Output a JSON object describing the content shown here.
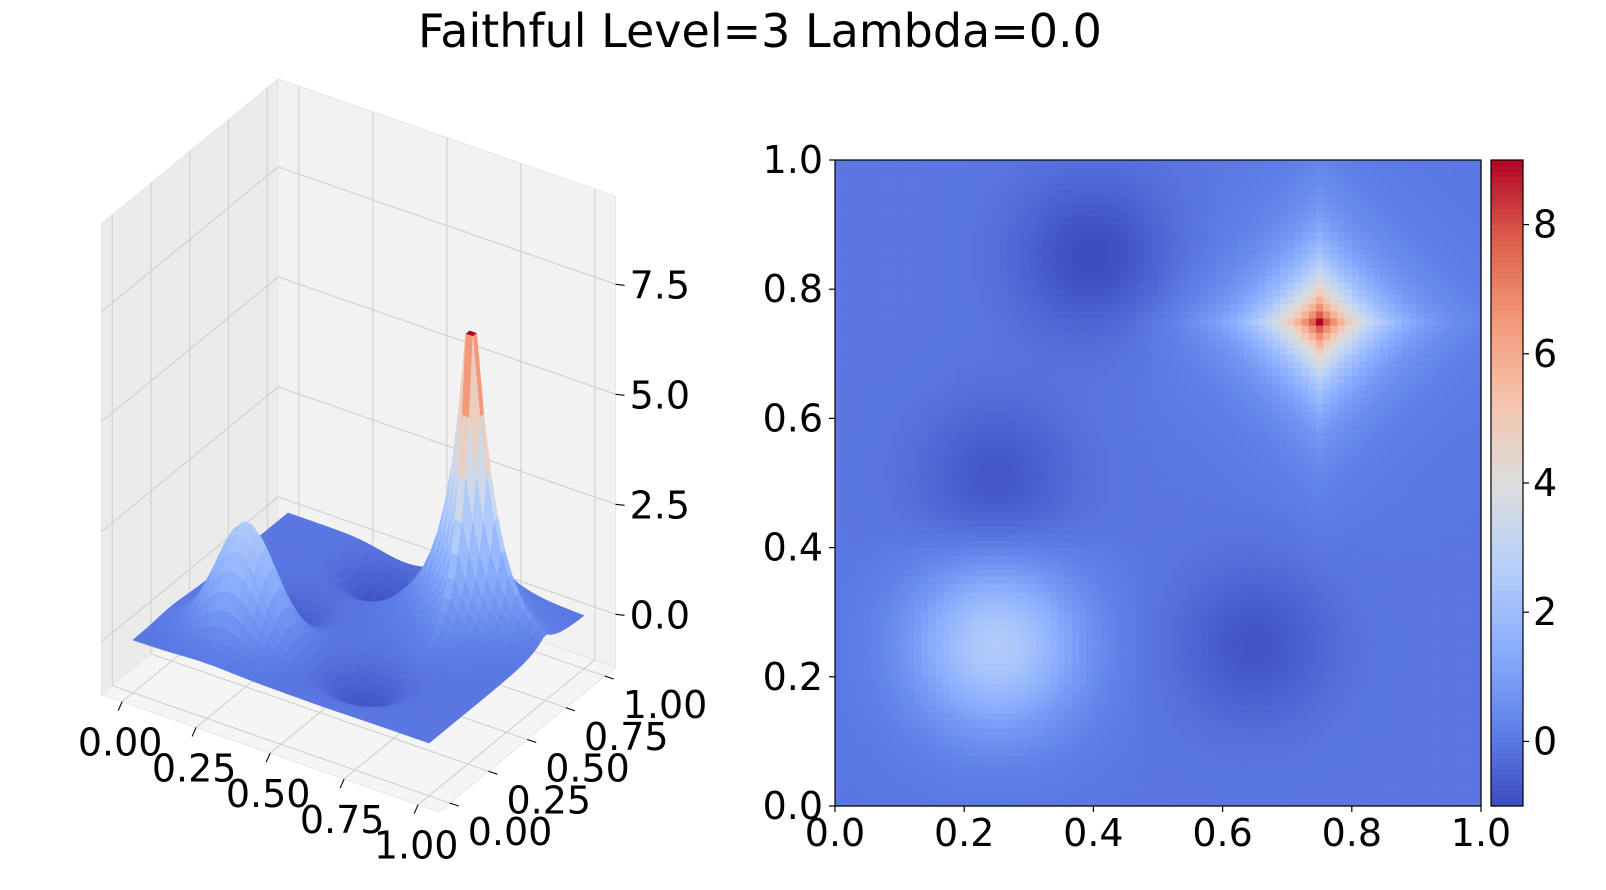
{
  "figure": {
    "title": "Faithful Level=3 Lambda=0.0"
  },
  "chart_data": [
    {
      "type": "surface3d",
      "colormap": "coolwarm",
      "x_ticks": [
        "0.00",
        "0.25",
        "0.50",
        "0.75",
        "1.00"
      ],
      "y_ticks": [
        "0.00",
        "0.25",
        "0.50",
        "0.75",
        "1.00"
      ],
      "z_ticks": [
        "0.0",
        "2.5",
        "5.0",
        "7.5"
      ],
      "xlim": [
        0,
        1
      ],
      "ylim": [
        0,
        1
      ],
      "zlim": [
        -1,
        9
      ],
      "grid": true,
      "features": [
        {
          "x": 0.75,
          "y": 0.75,
          "z": 9.0,
          "kind": "peak"
        },
        {
          "x": 0.25,
          "y": 0.25,
          "z": 3.0,
          "kind": "peak"
        },
        {
          "x": 0.4,
          "y": 0.85,
          "z": -1.0,
          "kind": "trough"
        },
        {
          "x": 0.25,
          "y": 0.5,
          "z": -0.8,
          "kind": "trough"
        },
        {
          "x": 0.65,
          "y": 0.25,
          "z": -0.8,
          "kind": "trough"
        }
      ]
    },
    {
      "type": "heatmap",
      "colormap": "coolwarm",
      "x_ticks": [
        "0.0",
        "0.2",
        "0.4",
        "0.6",
        "0.8",
        "1.0"
      ],
      "y_ticks": [
        "0.0",
        "0.2",
        "0.4",
        "0.6",
        "0.8",
        "1.0"
      ],
      "xlim": [
        0,
        1
      ],
      "ylim": [
        0,
        1
      ],
      "colorbar": {
        "ticks": [
          "0",
          "2",
          "4",
          "6",
          "8"
        ],
        "range": [
          -1,
          9
        ]
      }
    }
  ]
}
